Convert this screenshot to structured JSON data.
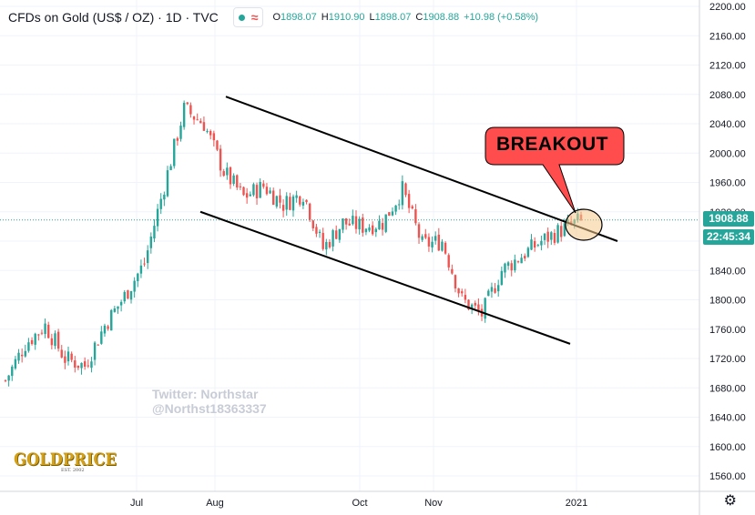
{
  "header": {
    "symbol_title": "CFDs on Gold (US$ / OZ) · 1D · TVC",
    "ohlc": [
      {
        "key": "O",
        "value": "1898.07"
      },
      {
        "key": "H",
        "value": "1910.90"
      },
      {
        "key": "L",
        "value": "1898.07"
      },
      {
        "key": "C",
        "value": "1908.88"
      }
    ],
    "change": "+10.98 (+0.58%)",
    "market_status_icon": "green-dot-icon",
    "indicator_icon": "wave-icon"
  },
  "price_scale": {
    "last_price_label": "1908.88",
    "countdown_label": "22:45:34",
    "last_price_color": "#26a69a",
    "countdown_color": "#26a69a"
  },
  "annotation": {
    "label": "BREAKOUT",
    "fill": "#ff4d4d"
  },
  "watermark": [
    "Twitter: Northstar",
    "@Northst18363337"
  ],
  "logo": {
    "word": "GOLDPRICE",
    "est": "EST. 2002"
  },
  "colors": {
    "up": "#26a69a",
    "down": "#ef5350",
    "grid": "#f0f3fa",
    "text": "#131722"
  },
  "chart_data": {
    "type": "candlestick",
    "title": "CFDs on Gold (US$ / OZ) · 1D · TVC",
    "x_tick_labels": [
      "Jul",
      "Aug",
      "Oct",
      "Nov",
      "2021"
    ],
    "y_tick_labels": [
      "1560.00",
      "1600.00",
      "1640.00",
      "1680.00",
      "1720.00",
      "1760.00",
      "1800.00",
      "1840.00",
      "1880.00",
      "1920.00",
      "1960.00",
      "2000.00",
      "2040.00",
      "2080.00",
      "2120.00",
      "2160.00",
      "2200.00"
    ],
    "ylim": [
      1538,
      2208
    ],
    "anchors": [
      [
        "start",
        1690
      ],
      [
        "jun-mid",
        1740
      ],
      [
        "jun-end",
        1765
      ],
      [
        "late-jun",
        1720
      ],
      [
        "jul-early",
        1710
      ],
      [
        "jul-mid",
        1765
      ],
      [
        "jul-late",
        1805
      ],
      [
        "aug-early",
        1850
      ],
      [
        "aug-4",
        1955
      ],
      [
        "aug-6",
        2060
      ],
      [
        "aug-8",
        2040
      ],
      [
        "aug-10",
        1975
      ],
      [
        "aug-mid",
        1940
      ],
      [
        "aug-late",
        1955
      ],
      [
        "sep-early",
        1930
      ],
      [
        "sep-mid",
        1945
      ],
      [
        "sep-late",
        1870
      ],
      [
        "oct-early",
        1905
      ],
      [
        "oct-mid",
        1900
      ],
      [
        "oct-late",
        1905
      ],
      [
        "nov-4",
        1950
      ],
      [
        "nov-8",
        1875
      ],
      [
        "nov-mid",
        1880
      ],
      [
        "nov-late",
        1800
      ],
      [
        "dec-1",
        1780
      ],
      [
        "dec-early",
        1840
      ],
      [
        "dec-mid",
        1860
      ],
      [
        "dec-late",
        1880
      ],
      [
        "dec-end",
        1895
      ],
      [
        "jan-4",
        1908.88
      ]
    ],
    "channel_upper": [
      [
        2077,
        1880
      ]
    ],
    "channel_lower": [
      [
        1920,
        1740
      ]
    ],
    "last_price": 1908.88
  }
}
